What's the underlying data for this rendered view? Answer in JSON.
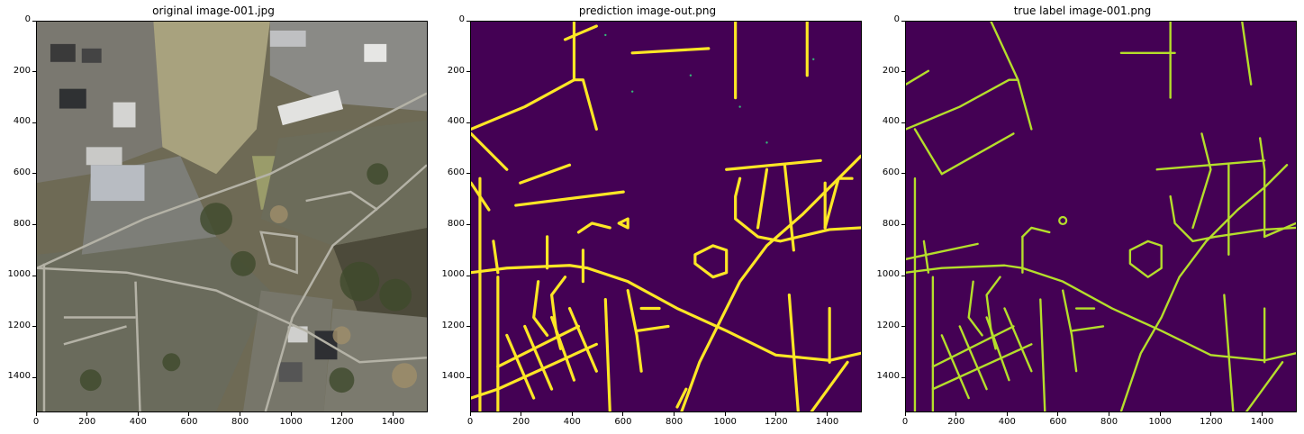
{
  "figure": {
    "panels": [
      {
        "id": "original",
        "title": "original image-001.jpg",
        "kind": "aerial-photo"
      },
      {
        "id": "prediction",
        "title": "prediction image-out.png",
        "kind": "road-mask-prediction"
      },
      {
        "id": "truth",
        "title": "true label image-001.png",
        "kind": "road-mask-label"
      }
    ],
    "axis": {
      "xticks": [
        "0",
        "200",
        "400",
        "600",
        "800",
        "1000",
        "1200",
        "1400"
      ],
      "yticks": [
        "0",
        "200",
        "400",
        "600",
        "800",
        "1000",
        "1200",
        "1400"
      ],
      "xlim": [
        0,
        1536
      ],
      "ylim": [
        1536,
        0
      ]
    },
    "colors": {
      "background": "#440154",
      "road_prediction": "#fde725",
      "road_label": "#b5de2b"
    }
  }
}
